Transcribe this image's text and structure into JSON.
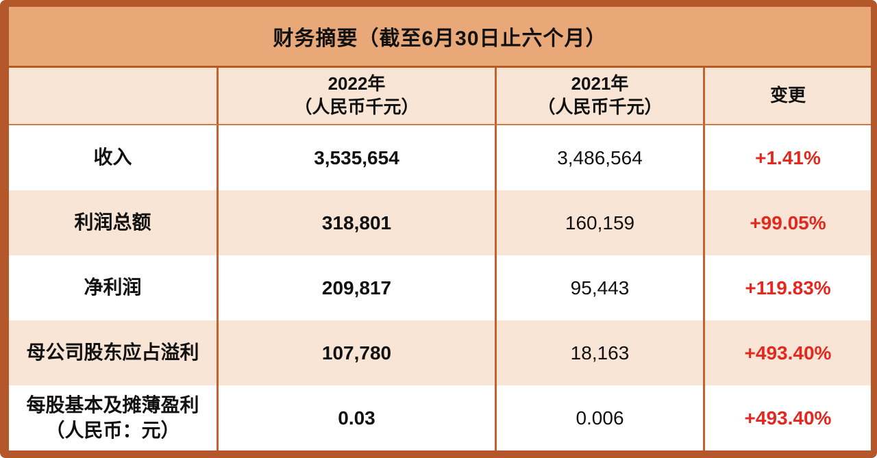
{
  "title": "财务摘要（截至6月30日止六个月）",
  "colors": {
    "frame_border": "#b4572a",
    "title_bar_bg": "#e9a878",
    "row_peach_bg": "#f8e5d5",
    "grid_line": "#c2632f",
    "change_positive_red": "#e3281f",
    "text": "#111111"
  },
  "table": {
    "header": {
      "metric": "",
      "y2022": {
        "line1": "2022年",
        "line2": "（人民币千元）"
      },
      "y2021": {
        "line1": "2021年",
        "line2": "（人民币千元）"
      },
      "change": "变更"
    },
    "rows": [
      {
        "label": "收入",
        "label2": "",
        "y2022": "3,535,654",
        "y2021": "3,486,564",
        "change": "+1.41%"
      },
      {
        "label": "利润总额",
        "label2": "",
        "y2022": "318,801",
        "y2021": "160,159",
        "change": "+99.05%"
      },
      {
        "label": "净利润",
        "label2": "",
        "y2022": "209,817",
        "y2021": "95,443",
        "change": "+119.83%"
      },
      {
        "label": "母公司股东应占溢利",
        "label2": "",
        "y2022": "107,780",
        "y2021": "18,163",
        "change": "+493.40%"
      },
      {
        "label": "每股基本及摊薄盈利",
        "label2": "（人民币：元）",
        "y2022": "0.03",
        "y2021": "0.006",
        "change": "+493.40%"
      }
    ]
  },
  "chart_data": {
    "type": "table",
    "title": "财务摘要（截至6月30日止六个月）",
    "columns": [
      "",
      "2022年（人民币千元）",
      "2021年（人民币千元）",
      "变更"
    ],
    "rows": [
      [
        "收入",
        "3,535,654",
        "3,486,564",
        "+1.41%"
      ],
      [
        "利润总额",
        "318,801",
        "160,159",
        "+99.05%"
      ],
      [
        "净利润",
        "209,817",
        "95,443",
        "+119.83%"
      ],
      [
        "母公司股东应占溢利",
        "107,780",
        "18,163",
        "+493.40%"
      ],
      [
        "每股基本及摊薄盈利（人民币：元）",
        "0.03",
        "0.006",
        "+493.40%"
      ]
    ],
    "notes": "2022 column and change column rendered bold; change column rendered red (#e3281f); rows alternate white and peach (#f8e5d5) backgrounds"
  }
}
